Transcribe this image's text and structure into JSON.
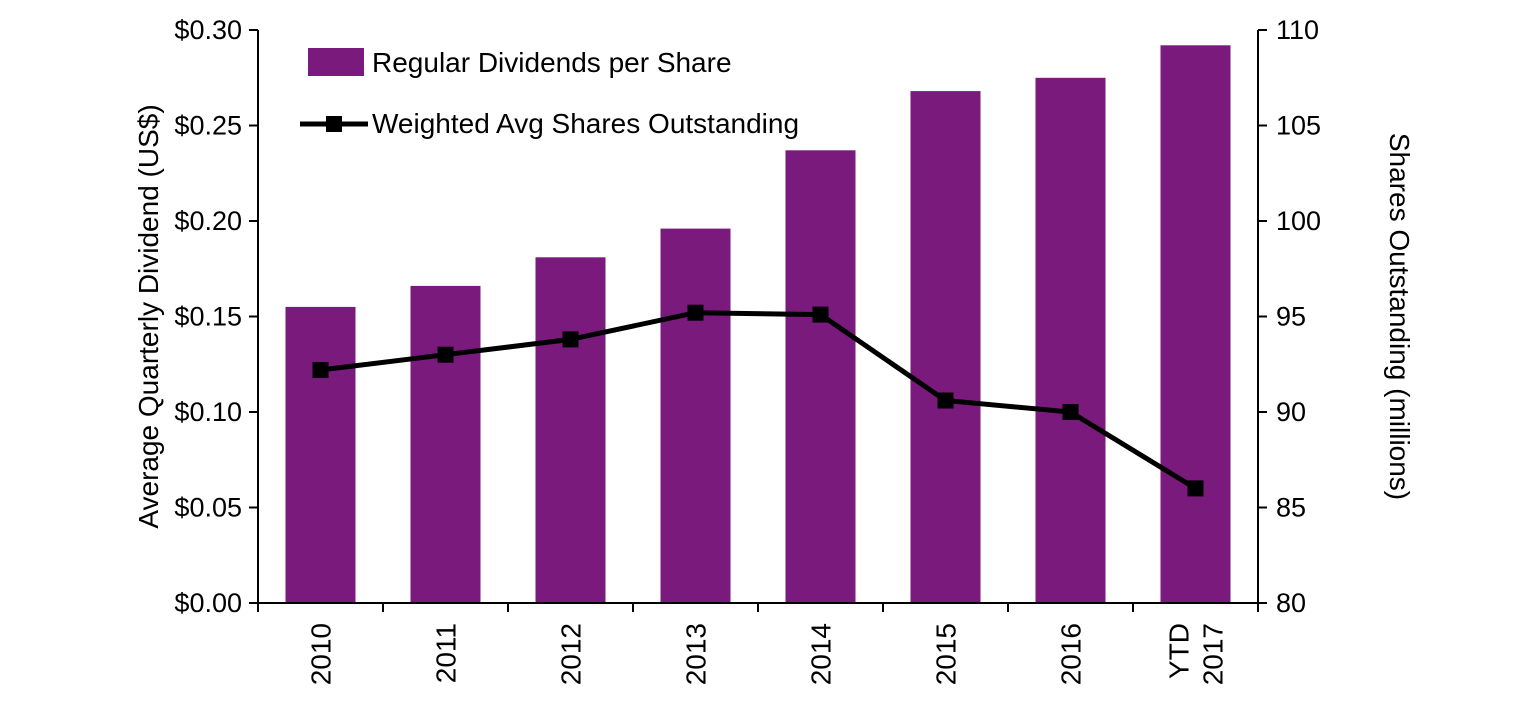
{
  "chart_data": {
    "type": "bar+line",
    "title": "",
    "categories": [
      "2010",
      "2011",
      "2012",
      "2013",
      "2014",
      "2015",
      "2016",
      "YTD 2017"
    ],
    "series": [
      {
        "name": "Regular Dividends per Share",
        "type": "bar",
        "axis": "left",
        "color": "#7A1A7D",
        "values": [
          0.155,
          0.166,
          0.181,
          0.196,
          0.237,
          0.268,
          0.275,
          0.292
        ]
      },
      {
        "name": "Weighted Avg Shares Outstanding",
        "type": "line",
        "axis": "right",
        "color": "#000000",
        "marker": "square",
        "values": [
          92.2,
          93.0,
          93.8,
          95.2,
          95.1,
          90.6,
          90.0,
          86.0
        ]
      }
    ],
    "left_axis": {
      "label": "Average Quarterly Dividend (US$)",
      "min": 0.0,
      "max": 0.3,
      "step": 0.05,
      "tick_prefix": "$",
      "tick_decimals": 2
    },
    "right_axis": {
      "label": "Shares Outstanding (millions)",
      "min": 80,
      "max": 110,
      "step": 5
    },
    "legend_position": "top-left",
    "grid": false,
    "axis_color": "#000000"
  }
}
